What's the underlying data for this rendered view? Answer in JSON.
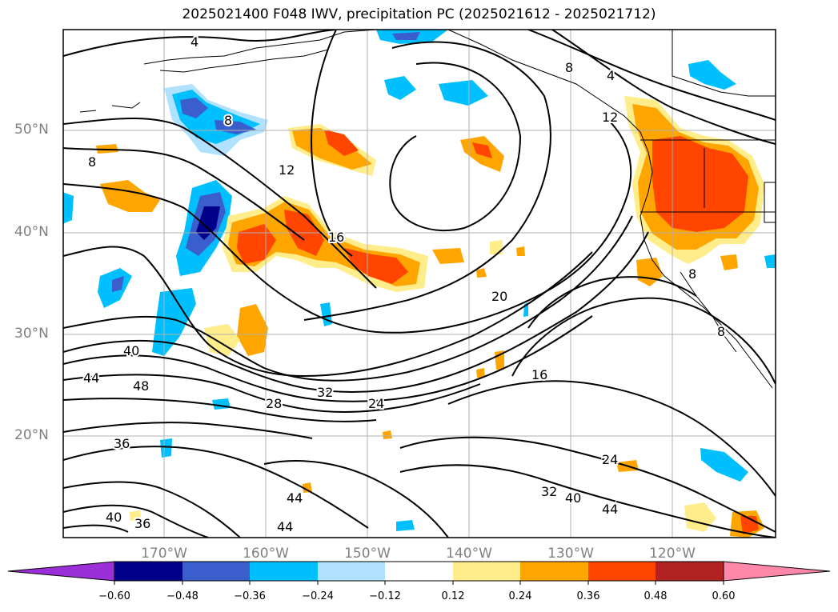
{
  "title": "2025021400 F048 IWV, precipitation PC (2025021612 - 2025021712)",
  "lat_labels": [
    "50°N",
    "40°N",
    "30°N",
    "20°N"
  ],
  "lon_labels": [
    "170°W",
    "160°W",
    "150°W",
    "140°W",
    "130°W",
    "120°W"
  ],
  "contour_labels": [
    "4",
    "8",
    "8",
    "8",
    "12",
    "12",
    "16",
    "16",
    "20",
    "24",
    "24",
    "28",
    "32",
    "32",
    "36",
    "36",
    "40",
    "40",
    "40",
    "44",
    "44",
    "44",
    "44",
    "48",
    "8",
    "8",
    "4"
  ],
  "colorbar": {
    "ticks": [
      "−0.60",
      "−0.48",
      "−0.36",
      "−0.24",
      "−0.12",
      "0.12",
      "0.24",
      "0.36",
      "0.48",
      "0.60"
    ],
    "colors": [
      "#9b30d9",
      "#00008b",
      "#3a5fcd",
      "#00bfff",
      "#b0e2ff",
      "#ffffff",
      "#ffec8b",
      "#ffa500",
      "#ff4500",
      "#b22222",
      "#ff88aa"
    ]
  },
  "palette": {
    "neg_strong": "#3a5fcd",
    "neg_mid": "#00bfff",
    "neg_weak": "#b0e2ff",
    "pos_weak": "#ffec8b",
    "pos_mid": "#ffa500",
    "pos_strong": "#ff4500"
  }
}
